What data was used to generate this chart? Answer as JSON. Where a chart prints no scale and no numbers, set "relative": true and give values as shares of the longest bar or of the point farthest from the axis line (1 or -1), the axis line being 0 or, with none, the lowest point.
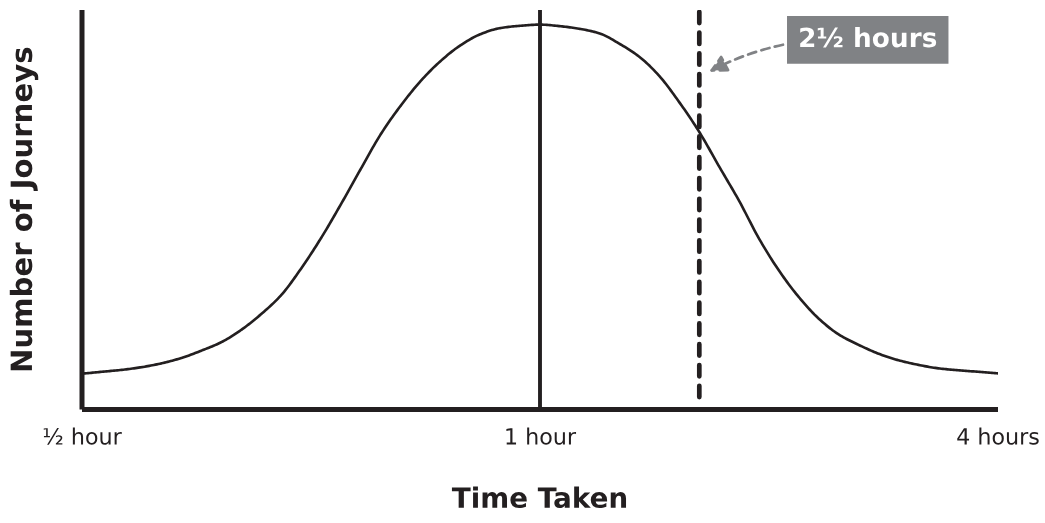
{
  "chart_data": {
    "type": "line",
    "xlabel": "Time Taken",
    "ylabel": "Number of Journeys",
    "relative": true,
    "categories": [
      "½ hour",
      null,
      null,
      null,
      null,
      null,
      null,
      null,
      null,
      null,
      null,
      null,
      null,
      null,
      null,
      null,
      null,
      null,
      null,
      null,
      null,
      null,
      null,
      "1 hour",
      null,
      null,
      null,
      null,
      null,
      null,
      null,
      null,
      null,
      null,
      null,
      null,
      null,
      null,
      null,
      null,
      null,
      null,
      null,
      null,
      null,
      null,
      "4 hours"
    ],
    "tick_labels": "x",
    "grid": false,
    "legend": false,
    "marker": "none",
    "line_style": "solid",
    "series": [
      {
        "color": "#231f20",
        "values": [
          0.093,
          0.098,
          0.103,
          0.11,
          0.12,
          0.134,
          0.153,
          0.175,
          0.207,
          0.248,
          0.297,
          0.366,
          0.445,
          0.533,
          0.625,
          0.715,
          0.789,
          0.853,
          0.905,
          0.946,
          0.975,
          0.991,
          0.997,
          1.0,
          0.996,
          0.989,
          0.977,
          0.95,
          0.916,
          0.866,
          0.798,
          0.721,
          0.631,
          0.542,
          0.444,
          0.361,
          0.292,
          0.236,
          0.195,
          0.168,
          0.145,
          0.128,
          0.116,
          0.107,
          0.102,
          0.098,
          0.094
        ]
      }
    ],
    "ref_lines": [
      {
        "axis": "x",
        "value": "1 hour",
        "color": "#231f20",
        "line_style": "solid"
      }
    ],
    "annotations": [
      "2½ hours"
    ]
  }
}
